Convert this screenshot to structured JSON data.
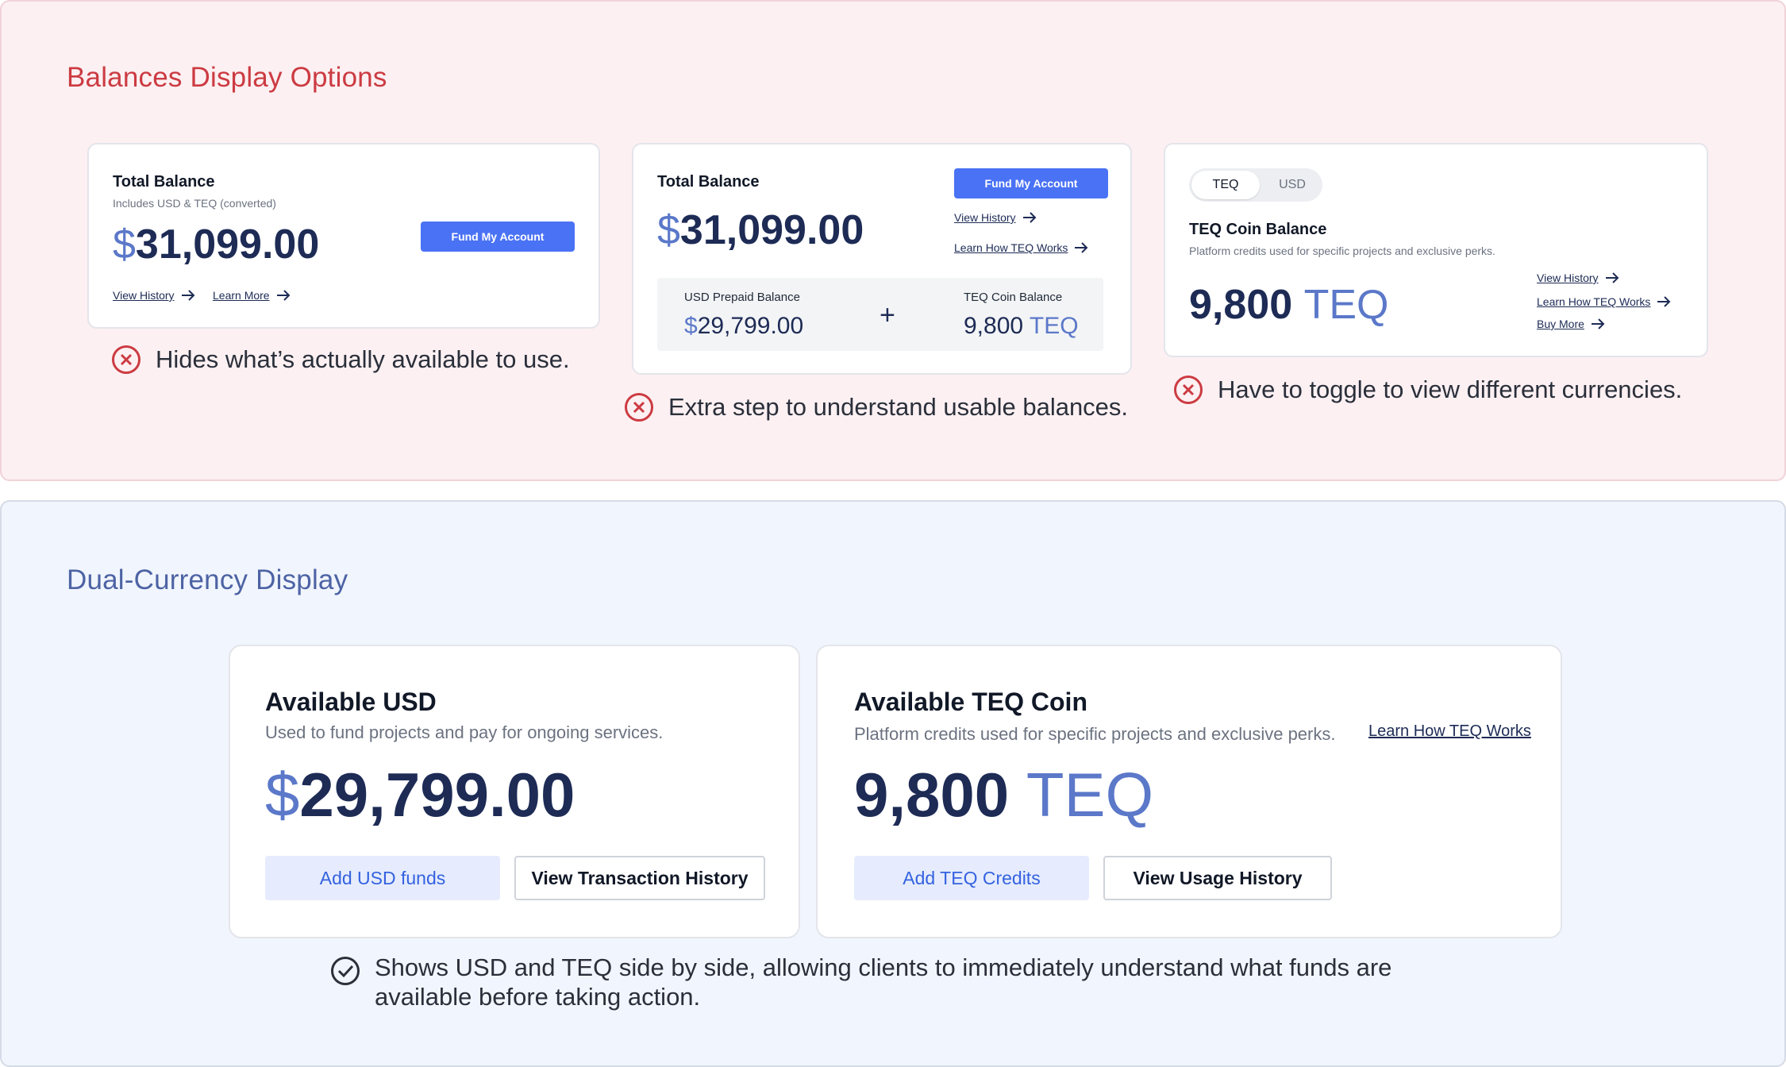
{
  "options_section": {
    "title": "Balances Display Options",
    "option1": {
      "title": "Total Balance",
      "subtitle": "Includes USD & TEQ (converted)",
      "currency_symbol": "$",
      "amount": "31,099.00",
      "fund_button": "Fund My Account",
      "view_history": "View History",
      "learn_more": "Learn More",
      "feedback": "Hides what’s actually available to use."
    },
    "option2": {
      "title": "Total Balance",
      "currency_symbol": "$",
      "amount": "31,099.00",
      "fund_button": "Fund My Account",
      "view_history": "View History",
      "learn_how": "Learn How TEQ Works",
      "usd_label": "USD Prepaid Balance",
      "usd_symbol": "$",
      "usd_amount": "29,799.00",
      "plus": "+",
      "teq_label": "TEQ Coin Balance",
      "teq_amount": "9,800",
      "teq_unit": "TEQ",
      "feedback": "Extra step to understand usable balances."
    },
    "option3": {
      "toggle_selected": "TEQ",
      "toggle_other": "USD",
      "title": "TEQ Coin Balance",
      "subtitle": "Platform credits used for specific projects and exclusive perks.",
      "amount": "9,800",
      "unit": "TEQ",
      "view_history": "View History",
      "learn_how": "Learn How TEQ Works",
      "buy_more": "Buy More",
      "feedback": "Have to toggle to view different currencies."
    }
  },
  "dual_section": {
    "title": "Dual-Currency Display",
    "usd_card": {
      "title": "Available USD",
      "subtitle": "Used to fund projects and pay for ongoing services.",
      "currency_symbol": "$",
      "amount": "29,799.00",
      "add_button": "Add USD funds",
      "history_button": "View Transaction History"
    },
    "teq_card": {
      "title": "Available TEQ Coin",
      "subtitle": "Platform credits used for specific projects and exclusive perks.",
      "learn_link": "Learn How TEQ Works",
      "amount": "9,800",
      "unit": "TEQ",
      "add_button": "Add TEQ Credits",
      "history_button": "View Usage History"
    },
    "feedback": "Shows USD and TEQ side by side, allowing clients to immediately understand what funds are available before taking action."
  },
  "colors": {
    "error": "#cc3b42",
    "success": "#2a2f3a",
    "primary": "#4a72f5",
    "navy": "#1d2b55",
    "accent_blue": "#5b78c9"
  },
  "icons": {
    "error": "x-circle-icon",
    "success": "check-circle-icon",
    "link_arrow": "arrow-right-icon"
  }
}
